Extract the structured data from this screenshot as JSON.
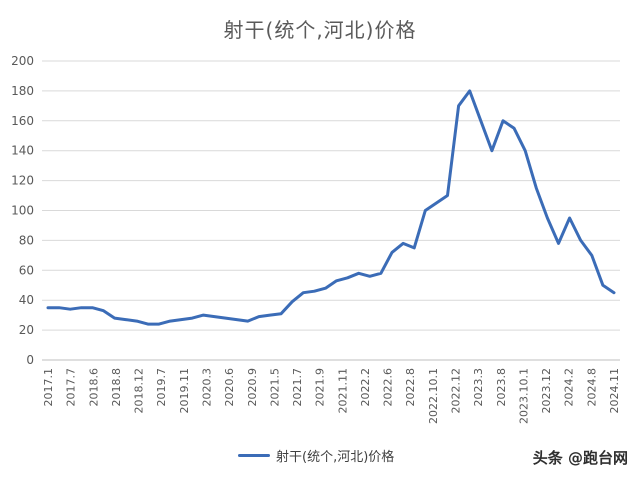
{
  "title": "射干(统个,河北)价格",
  "watermark": "头条 @跑台网",
  "colors": {
    "line": "#3b6cb7",
    "grid": "#d9d9d9",
    "axis": "#bfbfbf"
  },
  "chart_data": {
    "type": "line",
    "title": "射干(统个,河北)价格",
    "xlabel": "",
    "ylabel": "",
    "ylim": [
      0,
      200
    ],
    "yticks": [
      0,
      20,
      40,
      60,
      80,
      100,
      120,
      140,
      160,
      180,
      200
    ],
    "grid": true,
    "legend_position": "bottom",
    "x_tick_labels": [
      "2017.1",
      "2017.7",
      "2018.6",
      "2018.8",
      "2018.12",
      "2019.7",
      "2019.11",
      "2020.3",
      "2020.6",
      "2020.9",
      "2021.5",
      "2021.7",
      "2021.9",
      "2021.11",
      "2022.2",
      "2022.6",
      "2022.8",
      "2022.10.1",
      "2022.12",
      "2023.3",
      "2023.8",
      "2023.10.1",
      "2023.12",
      "2024.2",
      "2024.8",
      "2024.11"
    ],
    "series": [
      {
        "name": "射干(统个,河北)价格",
        "values": [
          35,
          35,
          34,
          35,
          35,
          33,
          28,
          27,
          26,
          24,
          24,
          26,
          27,
          28,
          30,
          29,
          28,
          27,
          26,
          29,
          30,
          31,
          39,
          45,
          46,
          48,
          53,
          55,
          58,
          56,
          58,
          72,
          78,
          75,
          100,
          105,
          110,
          170,
          180,
          160,
          140,
          160,
          155,
          140,
          115,
          95,
          78,
          95,
          80,
          70,
          50,
          45
        ]
      }
    ]
  }
}
